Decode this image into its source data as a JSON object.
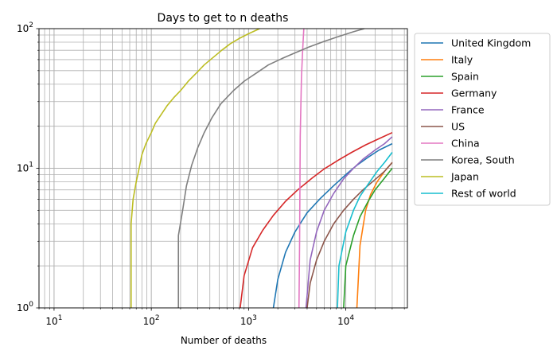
{
  "chart_data": {
    "type": "line",
    "title": "Days to get to n deaths",
    "xlabel": "Number of deaths",
    "ylabel": "",
    "xscale": "log",
    "yscale": "log",
    "xlim": [
      7,
      43000
    ],
    "ylim": [
      1,
      100
    ],
    "x_tick_labels": [
      {
        "base": "10",
        "exp": "1",
        "value": 10
      },
      {
        "base": "10",
        "exp": "2",
        "value": 100
      },
      {
        "base": "10",
        "exp": "3",
        "value": 1000
      },
      {
        "base": "10",
        "exp": "4",
        "value": 10000
      }
    ],
    "y_tick_labels": [
      {
        "base": "10",
        "exp": "0",
        "value": 1
      },
      {
        "base": "10",
        "exp": "1",
        "value": 10
      },
      {
        "base": "10",
        "exp": "2",
        "value": 100
      }
    ],
    "grid": true,
    "grid_minor": true,
    "legend_position": "outside-right",
    "series": [
      {
        "name": "United Kingdom",
        "color": "#1f77b4",
        "points": [
          [
            1800,
            1
          ],
          [
            2000,
            1.6
          ],
          [
            2400,
            2.5
          ],
          [
            3000,
            3.5
          ],
          [
            4000,
            4.8
          ],
          [
            5500,
            6.1
          ],
          [
            7500,
            7.5
          ],
          [
            10000,
            9
          ],
          [
            13000,
            10.5
          ],
          [
            17000,
            12
          ],
          [
            22000,
            13.5
          ],
          [
            30000,
            15
          ]
        ]
      },
      {
        "name": "Italy",
        "color": "#ff7f0e",
        "points": [
          [
            13000,
            1
          ],
          [
            14000,
            2.8
          ],
          [
            16000,
            5
          ],
          [
            18000,
            6.5
          ],
          [
            21000,
            8
          ],
          [
            25000,
            9.5
          ],
          [
            30000,
            11
          ]
        ]
      },
      {
        "name": "Spain",
        "color": "#2ca02c",
        "points": [
          [
            9500,
            1
          ],
          [
            10000,
            2
          ],
          [
            12000,
            3.3
          ],
          [
            14000,
            4.5
          ],
          [
            17000,
            5.8
          ],
          [
            20000,
            7
          ],
          [
            25000,
            8.5
          ],
          [
            30000,
            10
          ]
        ]
      },
      {
        "name": "Germany",
        "color": "#d62728",
        "points": [
          [
            820,
            1
          ],
          [
            900,
            1.7
          ],
          [
            1100,
            2.7
          ],
          [
            1400,
            3.6
          ],
          [
            1800,
            4.6
          ],
          [
            2400,
            5.8
          ],
          [
            3200,
            7
          ],
          [
            4500,
            8.5
          ],
          [
            6000,
            9.9
          ],
          [
            8500,
            11.5
          ],
          [
            11500,
            13
          ],
          [
            16000,
            14.7
          ],
          [
            22000,
            16.3
          ],
          [
            30000,
            18
          ]
        ]
      },
      {
        "name": "France",
        "color": "#9467bd",
        "points": [
          [
            3900,
            1
          ],
          [
            4300,
            2.2
          ],
          [
            5000,
            3.5
          ],
          [
            6000,
            5
          ],
          [
            7500,
            6.6
          ],
          [
            9500,
            8.4
          ],
          [
            12000,
            10
          ],
          [
            15000,
            11.6
          ],
          [
            20000,
            13.5
          ],
          [
            25000,
            15
          ],
          [
            30000,
            16.8
          ]
        ]
      },
      {
        "name": "US",
        "color": "#8c564b",
        "points": [
          [
            4000,
            1
          ],
          [
            4300,
            1.5
          ],
          [
            5000,
            2.2
          ],
          [
            6000,
            3
          ],
          [
            7500,
            4
          ],
          [
            9500,
            5
          ],
          [
            12000,
            6
          ],
          [
            15000,
            7
          ],
          [
            20000,
            8.3
          ],
          [
            25000,
            9.5
          ],
          [
            30000,
            11
          ]
        ]
      },
      {
        "name": "China",
        "color": "#e377c2",
        "points": [
          [
            3300,
            1
          ],
          [
            3350,
            3
          ],
          [
            3400,
            17
          ],
          [
            3500,
            45
          ],
          [
            3600,
            70
          ],
          [
            3700,
            100
          ]
        ]
      },
      {
        "name": "Korea, South",
        "color": "#7f7f7f",
        "points": [
          [
            190,
            1
          ],
          [
            190,
            3.3
          ],
          [
            210,
            5
          ],
          [
            230,
            7.5
          ],
          [
            260,
            10.5
          ],
          [
            300,
            14
          ],
          [
            350,
            18
          ],
          [
            420,
            23
          ],
          [
            520,
            29
          ],
          [
            700,
            36
          ],
          [
            900,
            42
          ],
          [
            1200,
            48
          ],
          [
            1600,
            55
          ],
          [
            2200,
            61
          ],
          [
            3000,
            67
          ],
          [
            4200,
            74
          ],
          [
            6000,
            81
          ],
          [
            8500,
            88
          ],
          [
            12000,
            95
          ],
          [
            15500,
            100
          ]
        ]
      },
      {
        "name": "Japan",
        "color": "#bcbd22",
        "points": [
          [
            62,
            1
          ],
          [
            62,
            4
          ],
          [
            65,
            6
          ],
          [
            70,
            8
          ],
          [
            75,
            10
          ],
          [
            80,
            12.5
          ],
          [
            88,
            15
          ],
          [
            100,
            18
          ],
          [
            110,
            21
          ],
          [
            125,
            24
          ],
          [
            145,
            28
          ],
          [
            170,
            32
          ],
          [
            200,
            36
          ],
          [
            240,
            42
          ],
          [
            290,
            48
          ],
          [
            350,
            55
          ],
          [
            430,
            62
          ],
          [
            530,
            70
          ],
          [
            650,
            78
          ],
          [
            800,
            85
          ],
          [
            1000,
            92
          ],
          [
            1300,
            100
          ]
        ]
      },
      {
        "name": "Rest of world",
        "color": "#17becf",
        "points": [
          [
            8200,
            1
          ],
          [
            8500,
            2
          ],
          [
            10000,
            3.5
          ],
          [
            12000,
            5
          ],
          [
            14000,
            6.3
          ],
          [
            17000,
            7.7
          ],
          [
            21000,
            9.5
          ],
          [
            25000,
            11
          ],
          [
            30000,
            13
          ]
        ]
      }
    ]
  }
}
